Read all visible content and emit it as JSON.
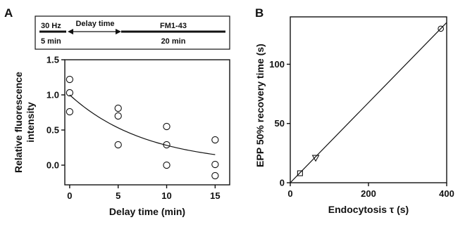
{
  "panels": {
    "a_label": "A",
    "b_label": "B"
  },
  "protocol": {
    "stim_label": "30 Hz",
    "stim_duration": "5 min",
    "delay_label": "Delay time",
    "dye_label": "FM1-43",
    "dye_duration": "20 min"
  },
  "chart_data": [
    {
      "panel": "A",
      "type": "scatter",
      "xlabel": "Delay time (min)",
      "ylabel": "Relative fluorescence intensity",
      "ylabel_lines": [
        "Relative fluorescence",
        "intensity"
      ],
      "xlim": [
        -0.5,
        16.5
      ],
      "ylim": [
        -0.28,
        1.5
      ],
      "x_ticks": [
        0,
        5,
        10,
        15
      ],
      "y_ticks": [
        0.0,
        0.5,
        1.0,
        1.5
      ],
      "y_tick_labels": [
        "0.0",
        "0.5",
        "1.0",
        "1.5"
      ],
      "marker": "circle",
      "points": [
        {
          "x": 0,
          "y": 1.22
        },
        {
          "x": 0,
          "y": 1.03
        },
        {
          "x": 0,
          "y": 0.76
        },
        {
          "x": 5,
          "y": 0.81
        },
        {
          "x": 5,
          "y": 0.7
        },
        {
          "x": 5,
          "y": 0.29
        },
        {
          "x": 10,
          "y": 0.55
        },
        {
          "x": 10,
          "y": 0.29
        },
        {
          "x": 10,
          "y": 0.0
        },
        {
          "x": 15,
          "y": 0.36
        },
        {
          "x": 15,
          "y": 0.01
        },
        {
          "x": 15,
          "y": -0.15
        }
      ],
      "fit": {
        "type": "exponential",
        "y0": 1.0,
        "tau": 7.9,
        "x_range": [
          0,
          15
        ]
      }
    },
    {
      "panel": "B",
      "type": "scatter",
      "xlabel": "Endocytosis τ (s)",
      "ylabel": "EPP 50% recovery time (s)",
      "xlim": [
        0,
        400
      ],
      "ylim": [
        0,
        140
      ],
      "x_ticks": [
        0,
        200,
        400
      ],
      "y_ticks": [
        0,
        50,
        100
      ],
      "points": [
        {
          "x": 385,
          "y": 130,
          "marker": "circle"
        },
        {
          "x": 65,
          "y": 21,
          "marker": "triangle-down"
        },
        {
          "x": 25,
          "y": 8,
          "marker": "square"
        }
      ],
      "fit": {
        "type": "linear",
        "slope": 0.338,
        "intercept": 0,
        "x_range": [
          0,
          400
        ]
      }
    }
  ]
}
